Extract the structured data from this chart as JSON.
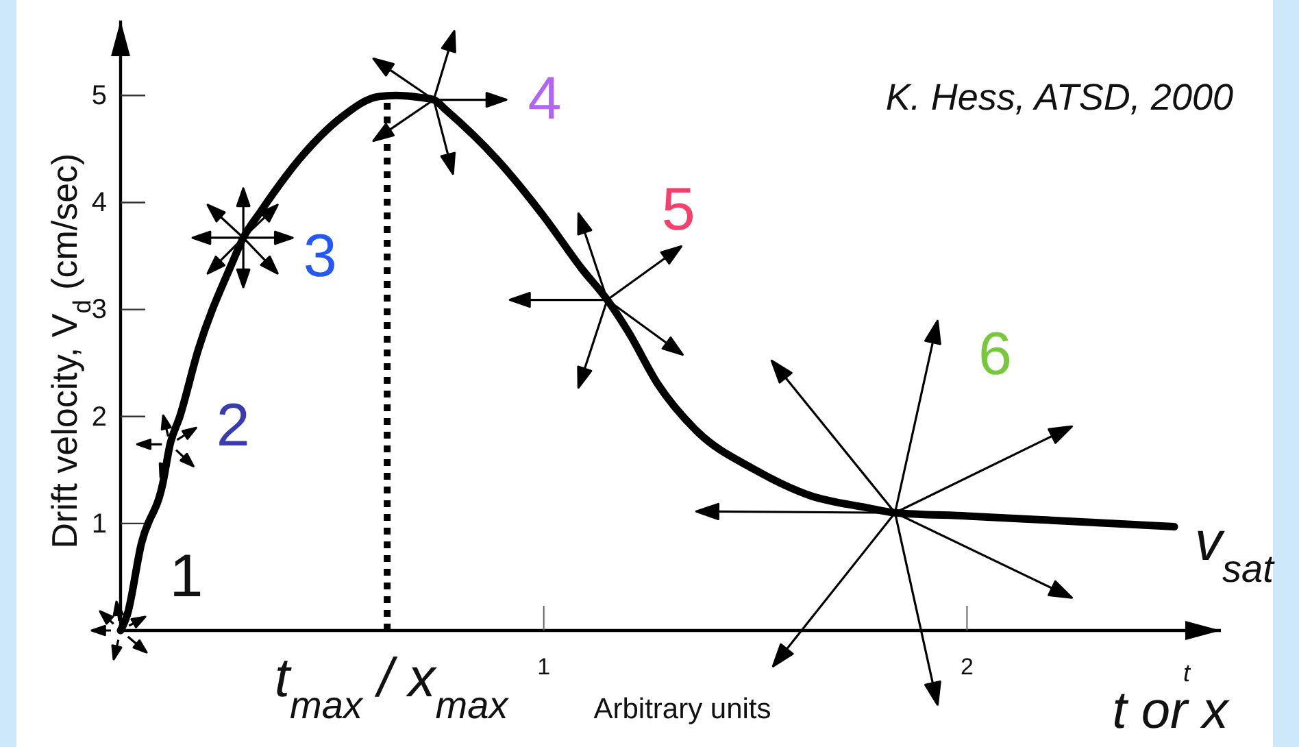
{
  "chart_data": {
    "type": "line",
    "x": [
      0,
      0.016,
      0.049,
      0.1,
      0.117,
      0.14,
      0.184,
      0.262,
      0.29,
      0.33,
      0.43,
      0.52,
      0.61,
      0.65,
      0.71,
      0.74,
      0.77,
      0.89,
      1.0,
      1.09,
      1.15,
      1.2,
      1.27,
      1.36,
      1.5,
      1.63,
      1.76,
      1.83,
      2.0,
      2.2,
      2.49
    ],
    "series": [
      {
        "name": "v$_{sat}$",
        "color": "#000000",
        "values": [
          0,
          0.15,
          0.81,
          1.38,
          1.74,
          2.0,
          2.63,
          3.42,
          3.67,
          3.91,
          4.44,
          4.79,
          4.99,
          5.0,
          4.98,
          4.96,
          4.86,
          4.4,
          3.87,
          3.38,
          3.09,
          2.79,
          2.3,
          1.87,
          1.5,
          1.26,
          1.15,
          1.1,
          1.07,
          1.03,
          0.97
        ]
      }
    ],
    "xlim": [
      0,
      2.6
    ],
    "ylim": [
      0,
      5.7
    ],
    "xticks": [
      1,
      2
    ],
    "yticks": [
      1,
      2,
      3,
      4,
      5
    ],
    "xlabel": "Arbitrary units",
    "ylabel": "Drift velocity, V$_{d}$ (cm/sec)",
    "ref_lines": [
      {
        "axis": "x",
        "value": 0.63,
        "label": "t$_{max}$ / x$_{max}$",
        "line_style": "dotted"
      }
    ],
    "annotations": [
      {
        "text": "1",
        "x": 0,
        "y": 0
      },
      {
        "text": "2",
        "x": 0.117,
        "y": 1.74
      },
      {
        "text": "3",
        "x": 0.29,
        "y": 3.67
      },
      {
        "text": "4",
        "x": 0.74,
        "y": 4.96
      },
      {
        "text": "5",
        "x": 1.15,
        "y": 3.09
      },
      {
        "text": "6",
        "x": 1.83,
        "y": 1.1
      },
      "t",
      "t or x",
      "K. Hess, ATSD, 2000"
    ]
  }
}
